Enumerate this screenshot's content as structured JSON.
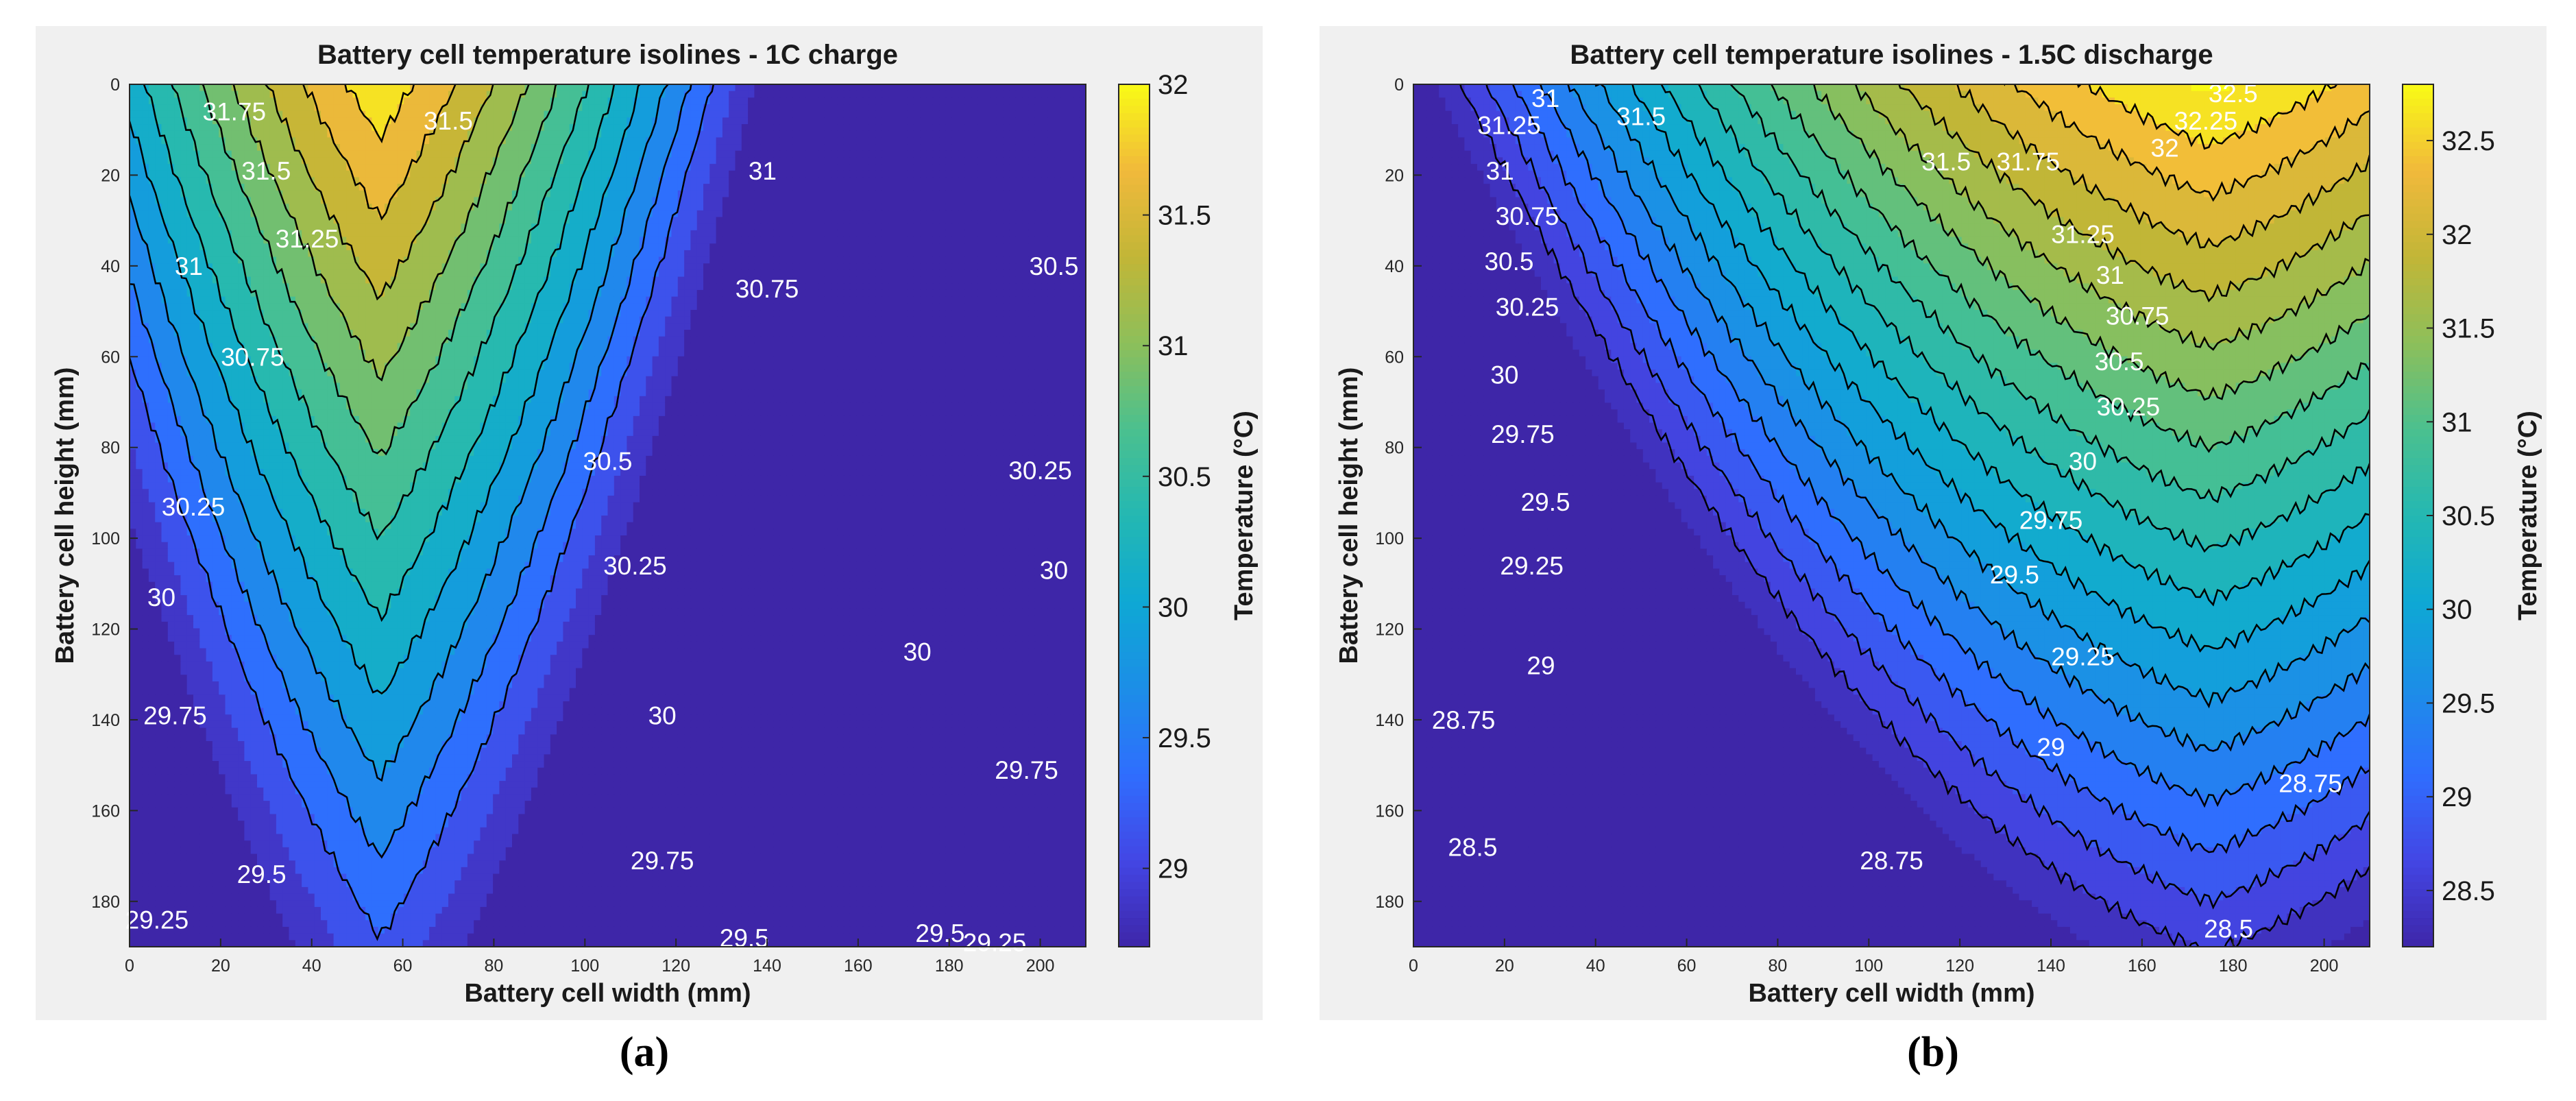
{
  "colors": {
    "colormap": [
      "#3e26a8",
      "#4346e5",
      "#2f6efe",
      "#1c8ee7",
      "#0ea8d4",
      "#24b8b2",
      "#4bc08f",
      "#8dbf5a",
      "#c2b637",
      "#f1b93b",
      "#f9fb15"
    ],
    "isoline": "#000000",
    "label_text": "#ffffff"
  },
  "captions": [
    "(a)",
    "(b)"
  ],
  "chart_data": [
    {
      "type": "contour",
      "title": "Battery cell temperature isolines - 1C charge",
      "xlabel": "Battery cell width (mm)",
      "ylabel": "Battery cell height (mm)",
      "colorbar_label": "Temperature (°C)",
      "xlim": [
        0,
        210
      ],
      "ylim": [
        0,
        190
      ],
      "y_reversed": true,
      "xticks": [
        0,
        20,
        40,
        60,
        80,
        100,
        120,
        140,
        160,
        180,
        200
      ],
      "yticks": [
        0,
        20,
        40,
        60,
        80,
        100,
        120,
        140,
        160,
        180
      ],
      "clim": [
        28.7,
        32.0
      ],
      "colorbar_ticks": [
        29,
        29.5,
        30,
        30.5,
        31,
        31.5,
        32
      ],
      "field": {
        "t0": 31.92,
        "x0": 55,
        "y0": 0,
        "ax": 0.022,
        "bx": 0.0002,
        "by": 0.0142
      },
      "levels": [
        29.25,
        29.5,
        29.75,
        30,
        30.25,
        30.5,
        30.75,
        31,
        31.25,
        31.5,
        31.75
      ],
      "labels": [
        {
          "text": "31.75",
          "x": 23,
          "y": 6
        },
        {
          "text": "31.5",
          "x": 70,
          "y": 8
        },
        {
          "text": "31.5",
          "x": 30,
          "y": 19
        },
        {
          "text": "31",
          "x": 139,
          "y": 19
        },
        {
          "text": "31.25",
          "x": 39,
          "y": 34
        },
        {
          "text": "31",
          "x": 13,
          "y": 40
        },
        {
          "text": "30.75",
          "x": 140,
          "y": 45
        },
        {
          "text": "30.5",
          "x": 203,
          "y": 40
        },
        {
          "text": "30.75",
          "x": 27,
          "y": 60
        },
        {
          "text": "30.5",
          "x": 105,
          "y": 83
        },
        {
          "text": "30.25",
          "x": 14,
          "y": 93
        },
        {
          "text": "30.25",
          "x": 200,
          "y": 85
        },
        {
          "text": "30.25",
          "x": 111,
          "y": 106
        },
        {
          "text": "30",
          "x": 203,
          "y": 107
        },
        {
          "text": "30",
          "x": 7,
          "y": 113
        },
        {
          "text": "30",
          "x": 173,
          "y": 125
        },
        {
          "text": "29.75",
          "x": 10,
          "y": 139
        },
        {
          "text": "30",
          "x": 117,
          "y": 139
        },
        {
          "text": "29.75",
          "x": 197,
          "y": 151
        },
        {
          "text": "29.5",
          "x": 29,
          "y": 174
        },
        {
          "text": "29.75",
          "x": 117,
          "y": 171
        },
        {
          "text": "29.25",
          "x": 6,
          "y": 184
        },
        {
          "text": "29.5",
          "x": 135,
          "y": 188
        },
        {
          "text": "29.5",
          "x": 178,
          "y": 187
        },
        {
          "text": "29.25",
          "x": 190,
          "y": 189
        }
      ]
    },
    {
      "type": "contour",
      "title": "Battery cell temperature isolines - 1.5C discharge",
      "xlabel": "Battery cell width (mm)",
      "ylabel": "Battery cell height (mm)",
      "colorbar_label": "Temperature (°C)",
      "xlim": [
        0,
        210
      ],
      "ylim": [
        0,
        190
      ],
      "y_reversed": true,
      "xticks": [
        0,
        20,
        40,
        60,
        80,
        100,
        120,
        140,
        160,
        180,
        200
      ],
      "yticks": [
        0,
        20,
        40,
        60,
        80,
        100,
        120,
        140,
        160,
        180
      ],
      "clim": [
        28.2,
        32.8
      ],
      "colorbar_ticks": [
        28.5,
        29,
        29.5,
        30,
        30.5,
        31,
        31.5,
        32,
        32.5
      ],
      "field": {
        "t0": 32.8,
        "x0": 175,
        "y0": 0,
        "ax": 0.008,
        "bx": 0.00011,
        "by": 0.0225
      },
      "levels": [
        28.5,
        28.75,
        29,
        29.25,
        29.5,
        29.75,
        30,
        30.25,
        30.5,
        30.75,
        31,
        31.25,
        31.5,
        31.75,
        32,
        32.25,
        32.5
      ],
      "labels": [
        {
          "text": "31",
          "x": 29,
          "y": 3
        },
        {
          "text": "31.5",
          "x": 50,
          "y": 7
        },
        {
          "text": "31.25",
          "x": 21,
          "y": 9
        },
        {
          "text": "32.5",
          "x": 180,
          "y": 2
        },
        {
          "text": "32.25",
          "x": 174,
          "y": 8
        },
        {
          "text": "32",
          "x": 165,
          "y": 14
        },
        {
          "text": "31.75",
          "x": 135,
          "y": 17
        },
        {
          "text": "31.5",
          "x": 117,
          "y": 17
        },
        {
          "text": "31",
          "x": 19,
          "y": 19
        },
        {
          "text": "30.75",
          "x": 25,
          "y": 29
        },
        {
          "text": "31.25",
          "x": 147,
          "y": 33
        },
        {
          "text": "30.5",
          "x": 21,
          "y": 39
        },
        {
          "text": "31",
          "x": 153,
          "y": 42
        },
        {
          "text": "30.25",
          "x": 25,
          "y": 49
        },
        {
          "text": "30.75",
          "x": 159,
          "y": 51
        },
        {
          "text": "30",
          "x": 20,
          "y": 64
        },
        {
          "text": "30.5",
          "x": 155,
          "y": 61
        },
        {
          "text": "29.75",
          "x": 24,
          "y": 77
        },
        {
          "text": "30.25",
          "x": 157,
          "y": 71
        },
        {
          "text": "30",
          "x": 147,
          "y": 83
        },
        {
          "text": "29.5",
          "x": 29,
          "y": 92
        },
        {
          "text": "29.75",
          "x": 140,
          "y": 96
        },
        {
          "text": "29.25",
          "x": 26,
          "y": 106
        },
        {
          "text": "29.5",
          "x": 132,
          "y": 108
        },
        {
          "text": "29.25",
          "x": 147,
          "y": 126
        },
        {
          "text": "29",
          "x": 28,
          "y": 128
        },
        {
          "text": "28.75",
          "x": 11,
          "y": 140
        },
        {
          "text": "29",
          "x": 140,
          "y": 146
        },
        {
          "text": "28.75",
          "x": 197,
          "y": 154
        },
        {
          "text": "28.5",
          "x": 13,
          "y": 168
        },
        {
          "text": "28.75",
          "x": 105,
          "y": 171
        },
        {
          "text": "28.5",
          "x": 179,
          "y": 186
        }
      ]
    }
  ]
}
